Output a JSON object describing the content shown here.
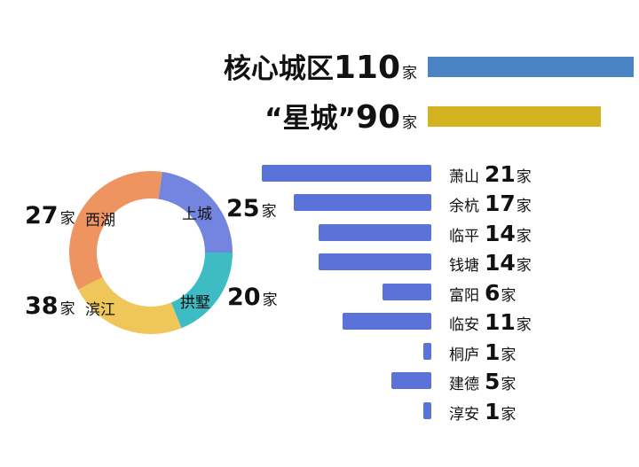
{
  "colors": {
    "core_bar": "#4a84c4",
    "star_bar": "#d4b320",
    "district_bar": "#5b73d8",
    "shangcheng": "#7485e0",
    "gongshu": "#3dbcc4",
    "binjiang": "#efc659",
    "xihu": "#ed9460"
  },
  "top": {
    "core": {
      "name": "核心城区",
      "value": "110",
      "unit": "家"
    },
    "star": {
      "name": "“星城”",
      "value": "90",
      "unit": "家"
    }
  },
  "donut": {
    "segments": [
      {
        "name": "上城",
        "value": "25",
        "unit": "家"
      },
      {
        "name": "拱墅",
        "value": "20",
        "unit": "家"
      },
      {
        "name": "滨江",
        "value": "38",
        "unit": "家"
      },
      {
        "name": "西湖",
        "value": "27",
        "unit": "家"
      }
    ]
  },
  "districts": [
    {
      "name": "萧山",
      "value": "21",
      "unit": "家"
    },
    {
      "name": "余杭",
      "value": "17",
      "unit": "家"
    },
    {
      "name": "临平",
      "value": "14",
      "unit": "家"
    },
    {
      "name": "钱塘",
      "value": "14",
      "unit": "家"
    },
    {
      "name": "富阳",
      "value": "6",
      "unit": "家"
    },
    {
      "name": "临安",
      "value": "11",
      "unit": "家"
    },
    {
      "name": "桐庐",
      "value": "1",
      "unit": "家"
    },
    {
      "name": "建德",
      "value": "5",
      "unit": "家"
    },
    {
      "name": "淳安",
      "value": "1",
      "unit": "家"
    }
  ],
  "chart_data": [
    {
      "type": "bar",
      "title": "",
      "orientation": "horizontal",
      "categories": [
        "核心城区",
        "“星城”"
      ],
      "values": [
        110,
        90
      ],
      "unit": "家"
    },
    {
      "type": "pie",
      "donut": true,
      "categories": [
        "上城",
        "拱墅",
        "滨江",
        "西湖"
      ],
      "values": [
        25,
        20,
        38,
        27
      ],
      "unit": "家"
    },
    {
      "type": "bar",
      "orientation": "horizontal",
      "direction": "right-to-left",
      "categories": [
        "萧山",
        "余杭",
        "临平",
        "钱塘",
        "富阳",
        "临安",
        "桐庐",
        "建德",
        "淳安"
      ],
      "values": [
        21,
        17,
        14,
        14,
        6,
        11,
        1,
        5,
        1
      ],
      "unit": "家"
    }
  ]
}
